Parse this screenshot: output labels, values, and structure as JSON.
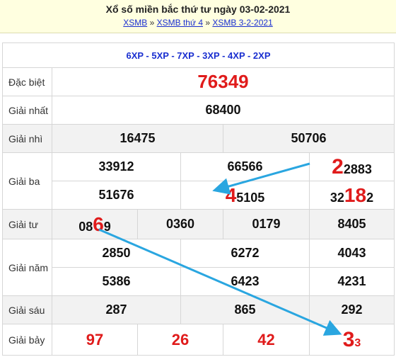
{
  "header": {
    "title": "Xổ số miền bắc thứ tư ngày 03-02-2021",
    "crumbs": [
      {
        "label": "XSMB"
      },
      {
        "label": "XSMB thứ 4"
      },
      {
        "label": "XSMB 3-2-2021"
      }
    ],
    "separator": "»"
  },
  "codes": "6XP - 5XP - 7XP - 3XP - 4XP - 2XP",
  "prizes": {
    "dac_biet": {
      "label": "Đặc biệt",
      "values": [
        "76349"
      ]
    },
    "nhat": {
      "label": "Giải nhất",
      "values": [
        "68400"
      ]
    },
    "nhi": {
      "label": "Giải nhì",
      "values": [
        "16475",
        "50706"
      ]
    },
    "ba": {
      "label": "Giải ba",
      "row1": [
        "33912",
        "66566"
      ],
      "r1c3": {
        "big": "2",
        "rest": "2883"
      },
      "r2c1": "51676",
      "r2c2": {
        "big": "4",
        "rest": "5105"
      },
      "r2c3": {
        "pre": "32",
        "big": "18",
        "post": "2"
      }
    },
    "tu": {
      "label": "Giải tư",
      "c1": {
        "pre": "08",
        "big": "6",
        "post": "9"
      },
      "values": [
        "0360",
        "0179",
        "8405"
      ]
    },
    "nam": {
      "label": "Giải năm",
      "row1": [
        "2850",
        "6272",
        "4043"
      ],
      "row2": [
        "5386",
        "6423",
        "4231"
      ]
    },
    "sau": {
      "label": "Giải sáu",
      "values": [
        "287",
        "865",
        "292"
      ]
    },
    "bay": {
      "label": "Giải bảy",
      "values": [
        "97",
        "26",
        "42"
      ],
      "last": {
        "big": "3",
        "small": "3"
      }
    }
  },
  "colors": {
    "accent_red": "#e01b1b",
    "link_blue": "#1a2fd0",
    "arrow": "#2aa6e0"
  }
}
